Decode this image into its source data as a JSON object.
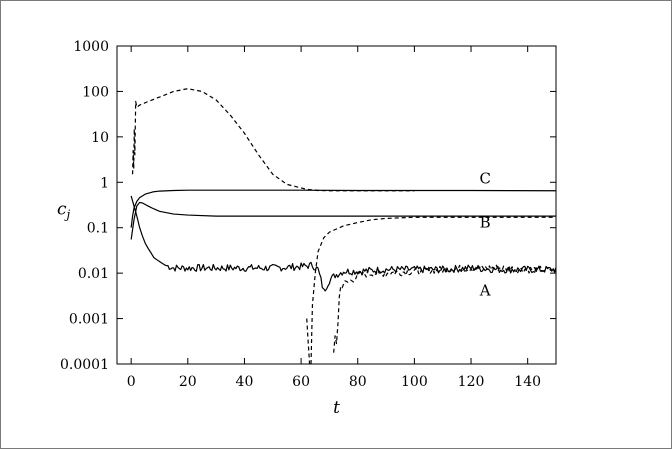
{
  "chart_data": {
    "type": "line",
    "xlabel": "t",
    "ylabel": "c",
    "ylabel_subscript": "j",
    "yscale": "log",
    "xlim": [
      -5,
      150
    ],
    "ylim": [
      0.0001,
      1000
    ],
    "x_ticks": [
      0,
      20,
      40,
      60,
      80,
      100,
      120,
      140
    ],
    "x_tick_labels": [
      "0",
      "20",
      "40",
      "60",
      "80",
      "100",
      "120",
      "140"
    ],
    "y_ticks": [
      0.0001,
      0.001,
      0.01,
      0.1,
      1,
      10,
      100,
      1000
    ],
    "y_tick_labels": [
      "0.0001",
      "0.001",
      "0.01",
      "0.1",
      "1",
      "10",
      "100",
      "1000"
    ],
    "grid": false,
    "annotations": [
      {
        "text": "C",
        "x": 125,
        "y": 0.95
      },
      {
        "text": "B",
        "x": 125,
        "y": 0.1
      },
      {
        "text": "A",
        "x": 125,
        "y": 0.0032
      }
    ],
    "series": [
      {
        "style": "solid",
        "label": "A",
        "noisy": true,
        "x": [
          0,
          1,
          2,
          3,
          4,
          5,
          6,
          7,
          8,
          10,
          12,
          15,
          20,
          30,
          40,
          50,
          60,
          64,
          66,
          67,
          68,
          70,
          72,
          75,
          80,
          90,
          100,
          110,
          120,
          130,
          140,
          150
        ],
        "y": [
          0.5,
          0.3,
          0.18,
          0.1,
          0.065,
          0.045,
          0.035,
          0.028,
          0.022,
          0.018,
          0.015,
          0.013,
          0.013,
          0.013,
          0.013,
          0.013,
          0.014,
          0.015,
          0.012,
          0.007,
          0.004,
          0.007,
          0.009,
          0.011,
          0.011,
          0.012,
          0.012,
          0.012,
          0.013,
          0.012,
          0.012,
          0.012
        ]
      },
      {
        "style": "solid",
        "label": "B",
        "x": [
          0,
          1,
          2,
          3,
          4,
          6,
          8,
          10,
          15,
          20,
          30,
          40,
          60,
          80,
          100,
          120,
          150
        ],
        "y": [
          0.055,
          0.15,
          0.3,
          0.36,
          0.35,
          0.3,
          0.26,
          0.23,
          0.2,
          0.19,
          0.18,
          0.18,
          0.18,
          0.18,
          0.18,
          0.18,
          0.18
        ]
      },
      {
        "style": "solid",
        "label": "C",
        "x": [
          0,
          0.5,
          1,
          2,
          3,
          5,
          8,
          10,
          15,
          20,
          40,
          60,
          80,
          100,
          120,
          150
        ],
        "y": [
          0.1,
          0.18,
          0.27,
          0.38,
          0.46,
          0.55,
          0.62,
          0.64,
          0.66,
          0.67,
          0.67,
          0.67,
          0.66,
          0.66,
          0.66,
          0.65
        ]
      },
      {
        "style": "dashed",
        "x": [
          0.5,
          0.7,
          0.9,
          1.1,
          1.3,
          1.6,
          2,
          3,
          6,
          10,
          15,
          20,
          25,
          30,
          35,
          40,
          45,
          50,
          55,
          60,
          62,
          64,
          66,
          70,
          80,
          90,
          100
        ],
        "y": [
          1.5,
          5,
          2,
          15,
          4,
          60,
          45,
          50,
          60,
          75,
          100,
          115,
          100,
          65,
          30,
          12,
          4,
          1.5,
          0.9,
          0.75,
          0.7,
          0.68,
          0.66,
          0.65,
          0.65,
          0.65,
          0.65
        ]
      },
      {
        "style": "dashed",
        "x": [
          63.5,
          64,
          65,
          66,
          68,
          70,
          75,
          80,
          85,
          90,
          100,
          110,
          150
        ],
        "y": [
          0.0001,
          0.002,
          0.01,
          0.03,
          0.06,
          0.08,
          0.11,
          0.13,
          0.15,
          0.16,
          0.17,
          0.17,
          0.17
        ]
      },
      {
        "style": "dashed",
        "x": [
          62,
          62.5,
          63
        ],
        "y": [
          0.001,
          0.0003,
          0.0001
        ]
      },
      {
        "style": "dashed",
        "noisy": true,
        "x": [
          71.5,
          72,
          72.5,
          73,
          73.5,
          74,
          75,
          76,
          78,
          80,
          85,
          90,
          100,
          110,
          120,
          130,
          140,
          150
        ],
        "y": [
          0.00015,
          0.0004,
          0.0003,
          0.0008,
          0.003,
          0.005,
          0.006,
          0.006,
          0.007,
          0.009,
          0.01,
          0.01,
          0.011,
          0.012,
          0.013,
          0.013,
          0.012,
          0.012
        ]
      }
    ]
  }
}
